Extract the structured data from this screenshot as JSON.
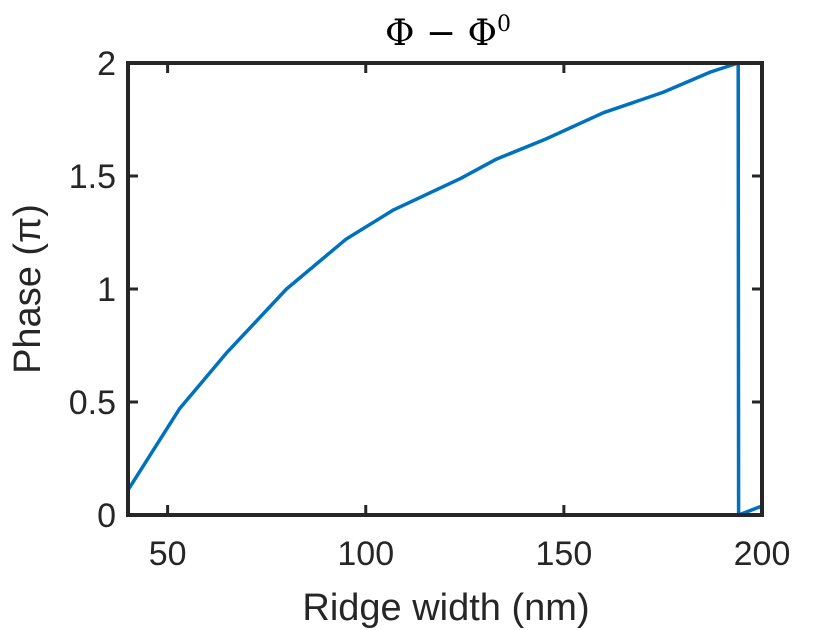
{
  "chart_data": {
    "type": "line",
    "title": "Φ − Φ",
    "title_superscript": "0",
    "xlabel": "Ridge width (nm)",
    "ylabel": "Phase  (π)",
    "xlim": [
      40,
      200
    ],
    "ylim": [
      0,
      2
    ],
    "xticks": [
      50,
      100,
      150,
      200
    ],
    "yticks": [
      0,
      0.5,
      1,
      1.5,
      2
    ],
    "ytick_labels": [
      "0",
      "0.5",
      "1",
      "1.5",
      "2"
    ],
    "grid": false,
    "box": true,
    "series": [
      {
        "color": "#0072BD",
        "x": [
          40,
          53,
          65,
          80,
          95,
          107,
          124,
          133,
          145,
          160,
          175,
          187,
          194,
          194.1,
          200
        ],
        "y": [
          0.11,
          0.47,
          0.72,
          1.0,
          1.22,
          1.35,
          1.49,
          1.575,
          1.66,
          1.78,
          1.87,
          1.96,
          2.0,
          0.0,
          0.04
        ]
      }
    ]
  }
}
